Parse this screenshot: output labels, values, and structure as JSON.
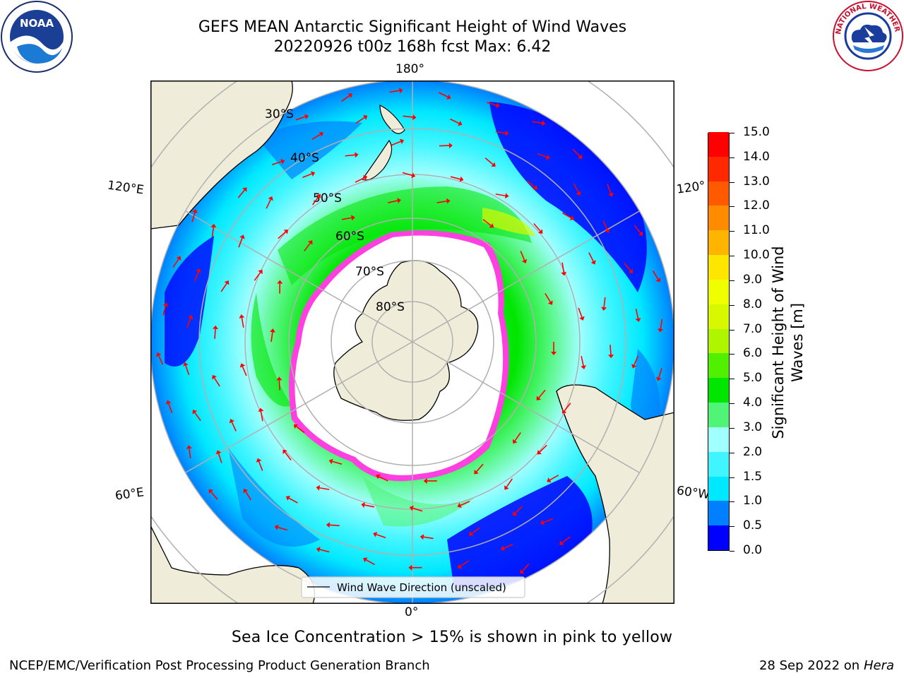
{
  "header": {
    "title_line1": "GEFS MEAN Antarctic Significant Height of Wind Waves",
    "title_line2": "20220926 t00z 168h fcst   Max: 6.42"
  },
  "logos": {
    "noaa": {
      "text": "NOAA",
      "icon": "noaa-logo-icon"
    },
    "nws": {
      "text": "NATIONAL WEATHER SERVICE",
      "icon": "nws-logo-icon"
    }
  },
  "map": {
    "projection": "south-polar-stereographic",
    "lon_labels": {
      "top": "180°",
      "bottom": "0°",
      "left_upper": "120°E",
      "left_lower": "60°E",
      "right_upper": "120°",
      "right_lower": "60°W"
    },
    "lat_labels": [
      "30°S",
      "40°S",
      "50°S",
      "60°S",
      "70°S",
      "80°S"
    ],
    "legend": "Wind Wave Direction (unscaled)",
    "arrow_color": "#ff0000",
    "land_color": "#efedd9",
    "ice_note_colors": [
      "#ff00ff",
      "#ffd040"
    ]
  },
  "chart_data": {
    "type": "heatmap",
    "title": "GEFS MEAN Antarctic Significant Height of Wind Waves",
    "subtitle": "20220926 t00z 168h fcst   Max: 6.42",
    "max_value": 6.42,
    "colorbar": {
      "label": "Significant Height of Wind Waves [m]",
      "label_line1": "Significant Height of Wind",
      "label_line2": "Waves [m]",
      "range": [
        0.0,
        15.0
      ],
      "ticks": [
        "0.0",
        "0.5",
        "1.0",
        "1.5",
        "2.0",
        "3.0",
        "4.0",
        "5.0",
        "6.0",
        "7.0",
        "8.0",
        "9.0",
        "10.0",
        "11.0",
        "12.0",
        "13.0",
        "14.0",
        "15.0"
      ],
      "colors": [
        "#0000ff",
        "#0080ff",
        "#00e8ff",
        "#40f5ff",
        "#a0ffff",
        "#50f578",
        "#00e600",
        "#50f000",
        "#b0f500",
        "#d8f800",
        "#f0ff00",
        "#ffe600",
        "#ffb400",
        "#ff8c00",
        "#ff5a00",
        "#ff2800",
        "#ff0000"
      ]
    }
  },
  "footer": {
    "sea_ice_note": "Sea Ice Concentration > 15% is shown in pink to yellow",
    "left": "NCEP/EMC/Verification Post Processing Product Generation Branch",
    "right_date": "28 Sep 2022 on",
    "right_host": "Hera"
  }
}
